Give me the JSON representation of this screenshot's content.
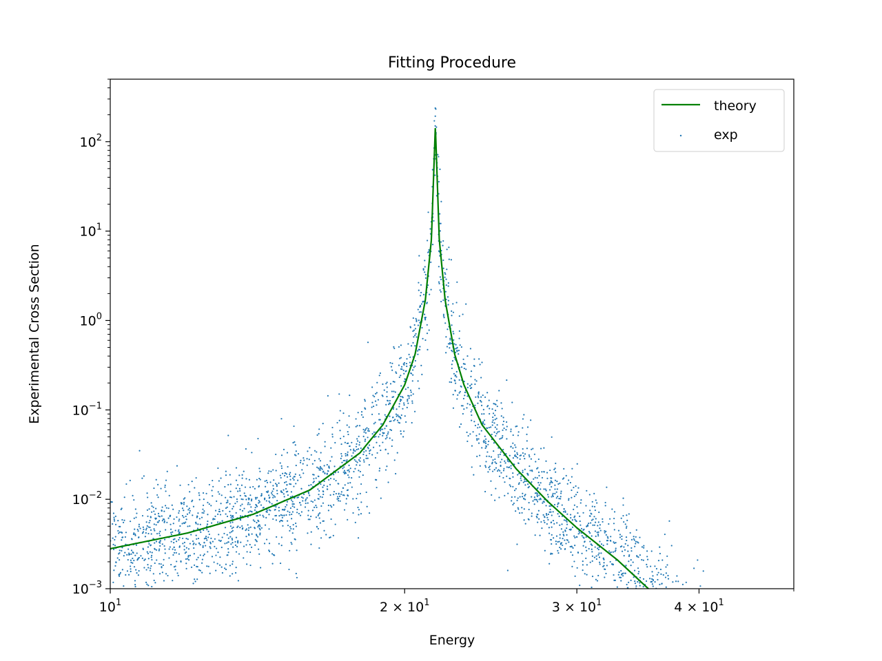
{
  "chart_data": {
    "type": "scatter",
    "title": "Fitting Procedure",
    "xlabel": "Energy",
    "ylabel": "Experimental Cross Section",
    "xscale": "log",
    "yscale": "log",
    "xlim": [
      10,
      50
    ],
    "ylim": [
      0.001,
      500
    ],
    "x_ticks": [
      {
        "value": 10,
        "base": "10",
        "exp": "1"
      },
      {
        "value": 20,
        "base": "2 × 10",
        "exp": "1"
      },
      {
        "value": 30,
        "base": "3 × 10",
        "exp": "1"
      },
      {
        "value": 40,
        "base": "4 × 10",
        "exp": "1"
      }
    ],
    "y_ticks": [
      {
        "value": 0.001,
        "base": "10",
        "exp": "−3"
      },
      {
        "value": 0.01,
        "base": "10",
        "exp": "−2"
      },
      {
        "value": 0.1,
        "base": "10",
        "exp": "−1"
      },
      {
        "value": 1,
        "base": "10",
        "exp": "0"
      },
      {
        "value": 10,
        "base": "10",
        "exp": "1"
      },
      {
        "value": 100,
        "base": "10",
        "exp": "2"
      }
    ],
    "grid": false,
    "legend_position": "top-right",
    "series": [
      {
        "name": "theory",
        "kind": "line",
        "color": "#008000",
        "model": "lorentzian",
        "peak_x": 21.5,
        "peak_y": 150,
        "x": [
          10,
          12,
          14,
          16,
          18,
          19,
          20,
          20.5,
          21,
          21.3,
          21.5,
          21.7,
          22,
          22.5,
          23,
          24,
          26,
          28,
          30,
          33,
          35.5
        ],
        "y": [
          0.0028,
          0.0042,
          0.0068,
          0.0127,
          0.033,
          0.068,
          0.19,
          0.42,
          1.7,
          8,
          150,
          8,
          1.7,
          0.42,
          0.19,
          0.068,
          0.022,
          0.0095,
          0.0048,
          0.0021,
          0.001
        ]
      },
      {
        "name": "exp",
        "kind": "scatter",
        "color": "#1f77b4",
        "n_points": 3000,
        "x_range": [
          10,
          41
        ],
        "noise_spread_log10": 0.3
      }
    ]
  }
}
